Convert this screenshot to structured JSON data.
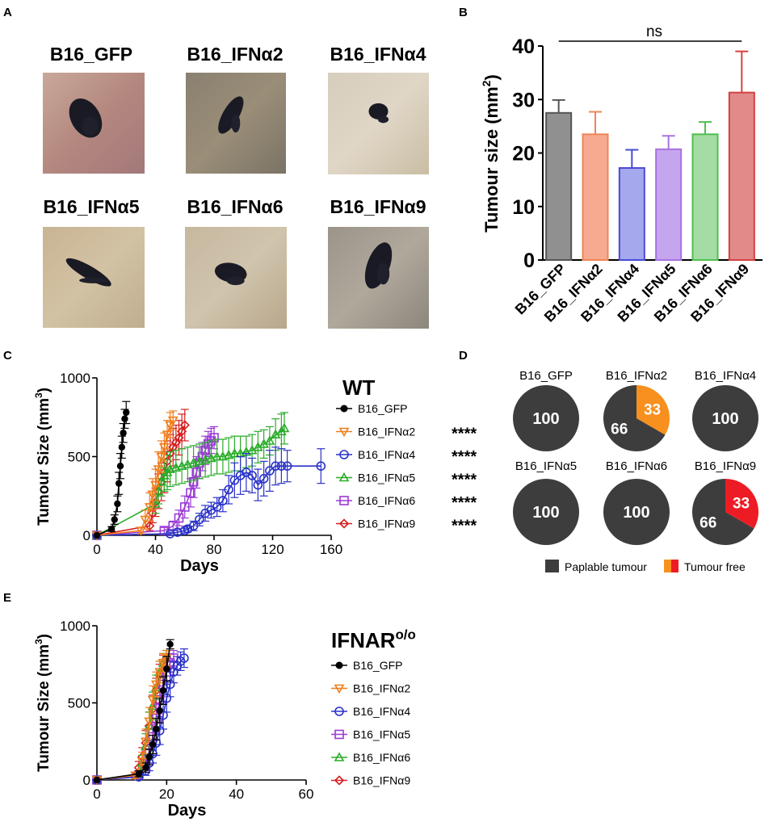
{
  "panels": {
    "A": {
      "letter": "A",
      "photos": [
        {
          "label": "B16_GFP",
          "palette": [
            "#c8a89a",
            "#a3787a",
            "#b4887f"
          ]
        },
        {
          "label": "B16_IFNα2",
          "palette": [
            "#8a8070",
            "#7b7366",
            "#9a8e78"
          ]
        },
        {
          "label": "B16_IFNα4",
          "palette": [
            "#d7cdbd",
            "#c9bda4",
            "#e0d6c6"
          ]
        },
        {
          "label": "B16_IFNα5",
          "palette": [
            "#c9b493",
            "#bfae8f",
            "#d2c2a4"
          ]
        },
        {
          "label": "B16_IFNα6",
          "palette": [
            "#c7b79f",
            "#b8a78b",
            "#d0c4ad"
          ]
        },
        {
          "label": "B16_IFNα9",
          "palette": [
            "#9b948a",
            "#8d867c",
            "#b0a89b"
          ]
        }
      ]
    },
    "B": {
      "letter": "B"
    },
    "C": {
      "letter": "C"
    },
    "D": {
      "letter": "D"
    },
    "E": {
      "letter": "E"
    }
  },
  "chart_data": [
    {
      "id": "B",
      "type": "bar",
      "title": "",
      "xlabel": "",
      "ylabel": "Tumour size (mm²)",
      "ylim": [
        0,
        40
      ],
      "yticks": [
        0,
        10,
        20,
        30,
        40
      ],
      "categories": [
        "B16_GFP",
        "B16_IFNα2",
        "B16_IFNα4",
        "B16_IFNα5",
        "B16_IFNα6",
        "B16_IFNα9"
      ],
      "values": [
        27.5,
        23.5,
        17.2,
        20.7,
        23.5,
        31.3
      ],
      "errors": [
        2.4,
        4.2,
        3.4,
        2.5,
        2.3,
        7.7
      ],
      "fill_colors": [
        "#909090",
        "#f6aa90",
        "#a6a8ee",
        "#c5a6ee",
        "#a4dca4",
        "#e28a8a"
      ],
      "edge_colors": [
        "#555555",
        "#ee8658",
        "#4a4ad8",
        "#a872e0",
        "#4fbf4f",
        "#d64040"
      ],
      "annotation": {
        "text": "ns",
        "from": "B16_GFP",
        "to": "B16_IFNα9",
        "level": 40.3
      }
    },
    {
      "id": "C",
      "type": "line",
      "title": "WT",
      "xlabel": "Days",
      "ylabel": "Tumour Size (mm³)",
      "xlim": [
        0,
        160
      ],
      "ylim": [
        0,
        1000
      ],
      "xticks": [
        0,
        40,
        80,
        120,
        160
      ],
      "yticks": [
        0,
        500,
        1000
      ],
      "series": [
        {
          "name": "B16_GFP",
          "sig": "",
          "color": "#000000",
          "marker": "circle-filled",
          "x": [
            0,
            10,
            12,
            14,
            15,
            16,
            17,
            18,
            19,
            20
          ],
          "y": [
            0,
            40,
            100,
            200,
            330,
            440,
            560,
            650,
            740,
            780
          ],
          "err": [
            0,
            15,
            30,
            50,
            70,
            80,
            70,
            60,
            60,
            70
          ]
        },
        {
          "name": "B16_IFNα2",
          "sig": "****",
          "color": "#f07d1a",
          "marker": "triangle-down",
          "x": [
            0,
            30,
            33,
            36,
            38,
            40,
            42,
            44,
            46,
            48,
            50,
            52
          ],
          "y": [
            0,
            30,
            100,
            180,
            260,
            320,
            420,
            500,
            560,
            640,
            700,
            730
          ],
          "err": [
            0,
            20,
            60,
            90,
            100,
            100,
            110,
            100,
            90,
            90,
            80,
            60
          ]
        },
        {
          "name": "B16_IFNα4",
          "sig": "****",
          "color": "#2a32c8",
          "marker": "circle-open",
          "x": [
            0,
            50,
            55,
            60,
            62,
            66,
            70,
            74,
            78,
            82,
            86,
            90,
            94,
            98,
            102,
            106,
            110,
            114,
            118,
            122,
            126,
            130,
            153
          ],
          "y": [
            0,
            10,
            20,
            30,
            40,
            60,
            100,
            140,
            160,
            180,
            220,
            290,
            350,
            380,
            400,
            380,
            320,
            360,
            410,
            440,
            440,
            440,
            440
          ],
          "err": [
            0,
            10,
            15,
            15,
            20,
            30,
            40,
            50,
            50,
            60,
            70,
            90,
            110,
            120,
            120,
            110,
            100,
            110,
            130,
            120,
            110,
            100,
            110
          ]
        },
        {
          "name": "B16_IFNα5",
          "sig": "****",
          "color": "#2aac2a",
          "marker": "triangle-up",
          "x": [
            0,
            40,
            42,
            44,
            46,
            48,
            50,
            54,
            58,
            62,
            66,
            70,
            74,
            78,
            82,
            86,
            90,
            94,
            98,
            102,
            106,
            110,
            114,
            118,
            122,
            126,
            128
          ],
          "y": [
            0,
            200,
            280,
            340,
            380,
            400,
            420,
            430,
            440,
            450,
            460,
            470,
            480,
            490,
            500,
            500,
            510,
            520,
            520,
            530,
            540,
            560,
            580,
            600,
            640,
            660,
            680
          ],
          "err": [
            0,
            60,
            80,
            90,
            100,
            110,
            110,
            110,
            110,
            110,
            110,
            110,
            110,
            110,
            110,
            110,
            110,
            110,
            110,
            100,
            100,
            100,
            90,
            90,
            100,
            110,
            100
          ]
        },
        {
          "name": "B16_IFNα6",
          "sig": "****",
          "color": "#9a3ad6",
          "marker": "square-open",
          "x": [
            0,
            46,
            52,
            56,
            60,
            64,
            66,
            68,
            70,
            72,
            74,
            76,
            78,
            80
          ],
          "y": [
            0,
            30,
            60,
            110,
            180,
            270,
            340,
            400,
            460,
            500,
            540,
            580,
            600,
            620
          ],
          "err": [
            0,
            20,
            30,
            50,
            70,
            90,
            100,
            100,
            100,
            90,
            90,
            80,
            80,
            70
          ]
        },
        {
          "name": "B16_IFNα9",
          "sig": "****",
          "color": "#d62020",
          "marker": "diamond-open",
          "x": [
            0,
            36,
            38,
            40,
            42,
            44,
            46,
            48,
            50,
            52,
            54,
            56,
            58,
            60
          ],
          "y": [
            0,
            60,
            140,
            210,
            280,
            340,
            400,
            470,
            520,
            560,
            590,
            620,
            660,
            700
          ],
          "err": [
            0,
            30,
            60,
            90,
            110,
            120,
            130,
            130,
            120,
            120,
            110,
            110,
            110,
            100
          ]
        }
      ]
    },
    {
      "id": "D",
      "type": "pie",
      "legend": [
        {
          "label": "Paplable tumour",
          "colors": [
            "#3d3d3d"
          ]
        },
        {
          "label": "Tumour free",
          "colors": [
            "#f7901e",
            "#ed1c24"
          ]
        }
      ],
      "pies": [
        {
          "title": "B16_GFP",
          "slices": [
            {
              "label": "100",
              "value": 100,
              "color": "#3d3d3d"
            }
          ]
        },
        {
          "title": "B16_IFNα2",
          "slices": [
            {
              "label": "66",
              "value": 66,
              "color": "#3d3d3d"
            },
            {
              "label": "33",
              "value": 33,
              "color": "#f7901e"
            }
          ]
        },
        {
          "title": "B16_IFNα4",
          "slices": [
            {
              "label": "100",
              "value": 100,
              "color": "#3d3d3d"
            }
          ]
        },
        {
          "title": "B16_IFNα5",
          "slices": [
            {
              "label": "100",
              "value": 100,
              "color": "#3d3d3d"
            }
          ]
        },
        {
          "title": "B16_IFNα6",
          "slices": [
            {
              "label": "100",
              "value": 100,
              "color": "#3d3d3d"
            }
          ]
        },
        {
          "title": "B16_IFNα9",
          "slices": [
            {
              "label": "66",
              "value": 66,
              "color": "#3d3d3d"
            },
            {
              "label": "33",
              "value": 33,
              "color": "#ed1c24"
            }
          ]
        }
      ]
    },
    {
      "id": "E",
      "type": "line",
      "title": "IFNAR",
      "title_superscript": "o/o",
      "xlabel": "Days",
      "ylabel": "Tumour Size (mm³)",
      "xlim": [
        0,
        60
      ],
      "ylim": [
        0,
        1000
      ],
      "xticks": [
        0,
        20,
        40,
        60
      ],
      "yticks": [
        0,
        500,
        1000
      ],
      "series": [
        {
          "name": "B16_GFP",
          "color": "#000000",
          "marker": "circle-filled",
          "x": [
            0,
            12,
            14,
            15,
            16,
            17,
            18,
            19,
            20,
            21
          ],
          "y": [
            0,
            40,
            80,
            150,
            230,
            330,
            450,
            580,
            720,
            880
          ],
          "err": [
            0,
            20,
            30,
            50,
            60,
            70,
            80,
            90,
            80,
            30
          ]
        },
        {
          "name": "B16_IFNα2",
          "color": "#f07d1a",
          "marker": "triangle-down",
          "x": [
            0,
            11,
            13,
            14,
            15,
            16,
            17,
            18,
            19,
            20
          ],
          "y": [
            0,
            30,
            120,
            250,
            380,
            520,
            620,
            700,
            760,
            790
          ],
          "err": [
            0,
            20,
            60,
            80,
            90,
            90,
            80,
            70,
            60,
            50
          ]
        },
        {
          "name": "B16_IFNα4",
          "color": "#2a32c8",
          "marker": "circle-open",
          "x": [
            0,
            12,
            14,
            15,
            16,
            17,
            18,
            19,
            20,
            21,
            22,
            23,
            24,
            25
          ],
          "y": [
            0,
            20,
            60,
            110,
            170,
            240,
            320,
            420,
            530,
            620,
            700,
            740,
            770,
            790
          ],
          "err": [
            0,
            15,
            30,
            50,
            60,
            80,
            90,
            90,
            90,
            80,
            70,
            60,
            60,
            60
          ]
        },
        {
          "name": "B16_IFNα5",
          "color": "#9a3ad6",
          "marker": "square-open",
          "x": [
            0,
            12,
            14,
            15,
            16,
            17,
            18,
            19,
            20,
            21,
            22
          ],
          "y": [
            0,
            30,
            90,
            170,
            280,
            400,
            520,
            620,
            700,
            760,
            790
          ],
          "err": [
            0,
            20,
            40,
            60,
            80,
            90,
            90,
            80,
            70,
            60,
            50
          ]
        },
        {
          "name": "B16_IFNα6",
          "color": "#2aac2a",
          "marker": "triangle-up",
          "x": [
            0,
            12,
            13,
            14,
            15,
            16,
            17,
            18,
            19,
            20
          ],
          "y": [
            0,
            40,
            110,
            220,
            350,
            480,
            600,
            700,
            760,
            790
          ],
          "err": [
            0,
            20,
            50,
            80,
            90,
            90,
            80,
            70,
            60,
            50
          ]
        },
        {
          "name": "B16_IFNα9",
          "color": "#d62020",
          "marker": "diamond-open",
          "x": [
            0,
            11,
            12,
            13,
            14,
            15,
            16,
            17,
            18,
            19,
            20
          ],
          "y": [
            0,
            30,
            80,
            150,
            240,
            350,
            460,
            580,
            680,
            750,
            790
          ],
          "err": [
            0,
            20,
            40,
            60,
            80,
            90,
            90,
            80,
            70,
            60,
            50
          ]
        }
      ]
    }
  ]
}
